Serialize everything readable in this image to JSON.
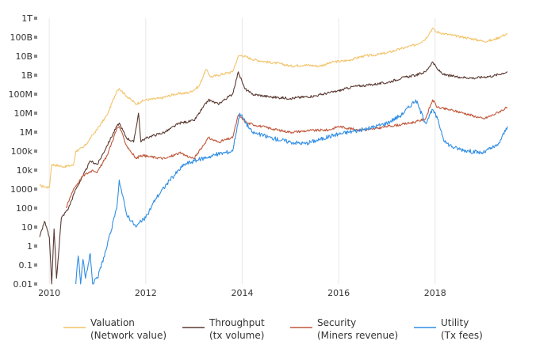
{
  "chart_data": {
    "type": "line",
    "title": "",
    "xlabel": "",
    "ylabel": "",
    "y_scale": "log",
    "xlim": [
      2009.8,
      2019.5
    ],
    "ylim": [
      0.01,
      1000000000000
    ],
    "grid": "vertical at labeled years",
    "legend_position": "bottom",
    "x_ticks": [
      {
        "value": 2010,
        "label": "2010"
      },
      {
        "value": 2012,
        "label": "2012"
      },
      {
        "value": 2014,
        "label": "2014"
      },
      {
        "value": 2016,
        "label": "2016"
      },
      {
        "value": 2018,
        "label": "2018"
      }
    ],
    "y_ticks": [
      {
        "value": 0.01,
        "label": "0.01"
      },
      {
        "value": 0.1,
        "label": "0.1"
      },
      {
        "value": 1,
        "label": "1"
      },
      {
        "value": 10,
        "label": "10"
      },
      {
        "value": 100,
        "label": "100"
      },
      {
        "value": 1000,
        "label": "1000"
      },
      {
        "value": 10000,
        "label": "10k"
      },
      {
        "value": 100000,
        "label": "100k"
      },
      {
        "value": 1000000,
        "label": "1M"
      },
      {
        "value": 10000000,
        "label": "10M"
      },
      {
        "value": 100000000,
        "label": "100M"
      },
      {
        "value": 1000000000,
        "label": "1B"
      },
      {
        "value": 10000000000,
        "label": "10B"
      },
      {
        "value": 100000000000,
        "label": "100B"
      },
      {
        "value": 1000000000000,
        "label": "1T"
      }
    ],
    "series": [
      {
        "name": "Valuation",
        "subtitle": "(Network value)",
        "color": "#f2c46a",
        "x": [
          2009.8,
          2010.0,
          2010.05,
          2010.3,
          2010.5,
          2010.55,
          2010.7,
          2010.8,
          2010.9,
          2011.0,
          2011.2,
          2011.4,
          2011.45,
          2011.6,
          2011.8,
          2011.9,
          2012.0,
          2012.3,
          2012.6,
          2012.9,
          2013.1,
          2013.25,
          2013.35,
          2013.5,
          2013.8,
          2013.92,
          2014.0,
          2014.2,
          2014.5,
          2014.8,
          2015.0,
          2015.3,
          2015.6,
          2015.9,
          2016.2,
          2016.5,
          2016.8,
          2017.0,
          2017.3,
          2017.6,
          2017.8,
          2017.95,
          2018.0,
          2018.2,
          2018.4,
          2018.6,
          2018.9,
          2019.0,
          2019.2,
          2019.4,
          2019.5
        ],
        "values": [
          1500,
          1200,
          20000,
          15000,
          18000,
          100000,
          150000,
          300000,
          700000,
          1500000,
          8000000,
          150000000,
          200000000,
          80000000,
          30000000,
          40000000,
          50000000,
          60000000,
          100000000,
          120000000,
          250000000,
          2000000000,
          800000000,
          1000000000,
          1500000000,
          10000000000,
          11000000000,
          7000000000,
          5000000000,
          4000000000,
          3000000000,
          3500000000,
          3000000000,
          5000000000,
          6000000000,
          10000000000,
          12000000000,
          15000000000,
          25000000000,
          40000000000,
          80000000000,
          300000000000,
          200000000000,
          150000000000,
          120000000000,
          100000000000,
          70000000000,
          60000000000,
          70000000000,
          120000000000,
          150000000000
        ]
      },
      {
        "name": "Throughput",
        "subtitle": "(tx volume)",
        "color": "#5a3a32",
        "x": [
          2009.8,
          2009.9,
          2010.0,
          2010.05,
          2010.1,
          2010.15,
          2010.25,
          2010.4,
          2010.55,
          2010.7,
          2010.85,
          2011.0,
          2011.2,
          2011.4,
          2011.45,
          2011.6,
          2011.75,
          2011.85,
          2011.9,
          2011.95,
          2012.1,
          2012.4,
          2012.7,
          2013.0,
          2013.3,
          2013.5,
          2013.8,
          2013.92,
          2014.05,
          2014.2,
          2014.6,
          2015.0,
          2015.5,
          2016.0,
          2016.3,
          2016.6,
          2017.0,
          2017.3,
          2017.6,
          2017.8,
          2017.95,
          2018.05,
          2018.2,
          2018.5,
          2018.8,
          2019.0,
          2019.2,
          2019.5
        ],
        "values": [
          3,
          20,
          3,
          0.01,
          8,
          0.02,
          30,
          100,
          1000,
          5000,
          30000,
          20000,
          200000,
          2000000,
          3000000,
          500000,
          300000,
          10000000,
          300000,
          400000,
          600000,
          1000000,
          3000000,
          4000000,
          50000000,
          30000000,
          100000000,
          1500000000,
          200000000,
          100000000,
          70000000,
          60000000,
          80000000,
          150000000,
          250000000,
          300000000,
          400000000,
          700000000,
          1000000000,
          1500000000,
          5000000000,
          2000000000,
          1000000000,
          800000000,
          700000000,
          800000000,
          900000000,
          1500000000
        ]
      },
      {
        "name": "Security",
        "subtitle": "(Miners revenue)",
        "color": "#c0573a",
        "x": [
          2010.35,
          2010.5,
          2010.7,
          2010.9,
          2011.0,
          2011.2,
          2011.4,
          2011.45,
          2011.6,
          2011.8,
          2011.9,
          2012.1,
          2012.4,
          2012.7,
          2012.9,
          2013.0,
          2013.3,
          2013.5,
          2013.8,
          2013.92,
          2014.1,
          2014.4,
          2014.8,
          2015.0,
          2015.4,
          2015.8,
          2016.0,
          2016.4,
          2016.7,
          2017.0,
          2017.3,
          2017.6,
          2017.8,
          2017.95,
          2018.05,
          2018.3,
          2018.6,
          2018.9,
          2019.0,
          2019.2,
          2019.5
        ],
        "values": [
          100,
          1000,
          5000,
          10000,
          8000,
          60000,
          1500000,
          2000000,
          200000,
          40000,
          60000,
          50000,
          40000,
          80000,
          50000,
          40000,
          500000,
          300000,
          500000,
          8000000,
          3000000,
          2000000,
          1200000,
          1000000,
          1200000,
          1300000,
          2000000,
          1300000,
          1400000,
          2000000,
          2500000,
          3500000,
          5000000,
          50000000,
          20000000,
          15000000,
          10000000,
          6000000,
          5000000,
          8000000,
          20000000
        ]
      },
      {
        "name": "Utility",
        "subtitle": "(Tx fees)",
        "color": "#2f8de4",
        "x": [
          2010.55,
          2010.6,
          2010.65,
          2010.7,
          2010.75,
          2010.85,
          2010.9,
          2011.0,
          2011.2,
          2011.4,
          2011.45,
          2011.6,
          2011.8,
          2011.9,
          2012.0,
          2012.2,
          2012.5,
          2012.8,
          2013.0,
          2013.3,
          2013.5,
          2013.8,
          2013.95,
          2014.2,
          2014.6,
          2015.0,
          2015.3,
          2015.6,
          2015.9,
          2016.2,
          2016.6,
          2017.0,
          2017.3,
          2017.6,
          2017.8,
          2017.95,
          2018.05,
          2018.2,
          2018.4,
          2018.7,
          2019.0,
          2019.1,
          2019.3,
          2019.5
        ],
        "values": [
          0.01,
          0.3,
          0.01,
          0.2,
          0.02,
          0.4,
          0.01,
          0.02,
          1,
          100,
          3000,
          50,
          10,
          20,
          30,
          300,
          3000,
          20000,
          30000,
          50000,
          70000,
          100000,
          10000000,
          1000000,
          500000,
          300000,
          250000,
          400000,
          700000,
          1000000,
          1500000,
          3000000,
          8000000,
          50000000,
          3000000,
          15000000,
          5000000,
          300000,
          150000,
          100000,
          80000,
          120000,
          200000,
          2000000
        ]
      }
    ]
  }
}
